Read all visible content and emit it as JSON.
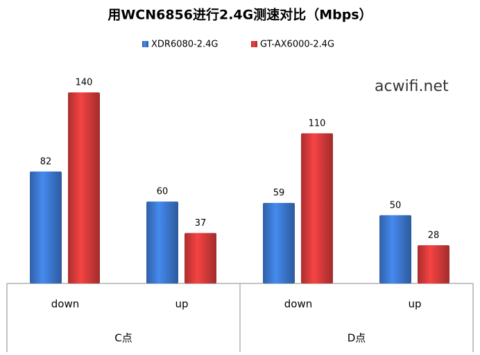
{
  "chart_data": {
    "type": "bar",
    "title": "用WCN6856进行2.4G测速对比（Mbps）",
    "categories": [
      "down",
      "up",
      "down",
      "up"
    ],
    "groups": [
      "C点",
      "D点"
    ],
    "series": [
      {
        "name": "XDR6080-2.4G",
        "color": "#3c78d0",
        "values": [
          82,
          60,
          59,
          50
        ]
      },
      {
        "name": "GT-AX6000-2.4G",
        "color": "#d63a3a",
        "values": [
          140,
          37,
          110,
          28
        ]
      }
    ],
    "watermark": "acwifi.net"
  }
}
